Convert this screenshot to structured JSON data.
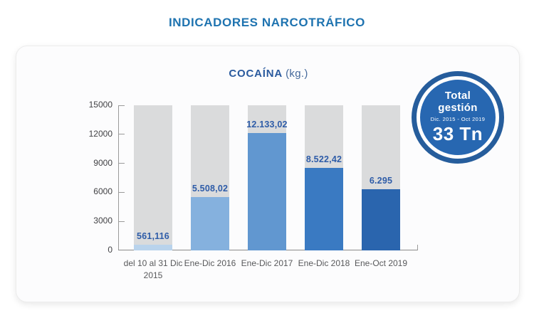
{
  "page": {
    "title": "INDICADORES NARCOTRÁFICO"
  },
  "chart": {
    "title_main": "COCAÍNA",
    "title_unit": "(kg.)"
  },
  "badge": {
    "line1": "Total",
    "line2": "gestión",
    "range": "Dic. 2015 - Oct 2019",
    "total": "33 Tn",
    "inner_color": "#2767b1",
    "ring_color": "#265d9c"
  },
  "colors": {
    "page_title_blue": "#1e73b0",
    "chart_title_blue": "#2a5a9e",
    "value_label_blue": "#2e5ca8",
    "axis_gray": "#9a9a9a",
    "y_label_gray": "#414144",
    "x_label_gray": "#58595b"
  },
  "chart_data": {
    "type": "bar",
    "title": "COCAÍNA (kg.)",
    "categories": [
      "del 10 al 31 Dic 2015",
      "Ene-Dic 2016",
      "Ene-Dic 2017",
      "Ene-Dic 2018",
      "Ene-Oct 2019"
    ],
    "values": [
      561.116,
      5508.02,
      12133.02,
      8522.42,
      6295
    ],
    "value_labels": [
      "561,116",
      "5.508,02",
      "12.133,02",
      "8.522,42",
      "6.295"
    ],
    "bar_colors": [
      "#b9d3ec",
      "#85b1de",
      "#6197d0",
      "#3a7ac2",
      "#2a65ae"
    ],
    "track_color": "#dadbdc",
    "xlabel": "",
    "ylabel": "",
    "ylim": [
      0,
      15000
    ],
    "y_ticks": [
      0,
      3000,
      6000,
      9000,
      12000,
      15000
    ],
    "grid": false,
    "legend": "none",
    "note_total": "Total gestión Dic. 2015 - Oct 2019: 33 Tn"
  }
}
